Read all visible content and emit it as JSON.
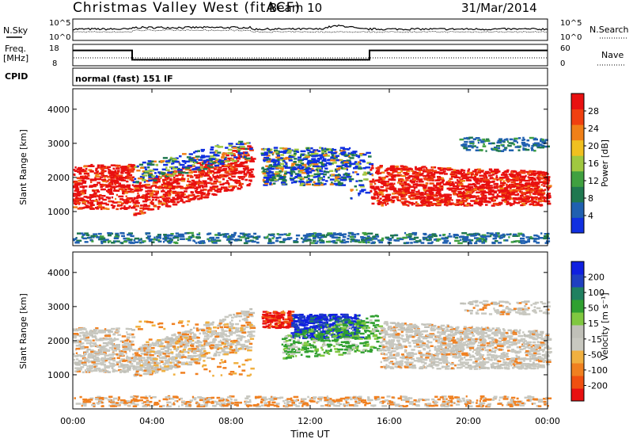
{
  "header": {
    "station": "Christmas Valley West (fitACF)",
    "beam": "Beam 10",
    "date": "31/Mar/2014"
  },
  "noise_panel": {
    "left_label": "N.Sky",
    "right_label": "N.Search",
    "left_ticks": [
      "10^5",
      "10^0"
    ],
    "right_ticks": [
      "10^5",
      "10^0"
    ]
  },
  "freq_panel": {
    "left_label_1": "Freq.",
    "left_label_2": "[MHz]",
    "right_label": "Nave",
    "left_ticks": [
      "18",
      "8"
    ],
    "right_ticks": [
      "60",
      "0"
    ],
    "cpid_label": "CPID",
    "cpid_text": "normal (fast) 151 IF"
  },
  "colors": {
    "power": [
      "#1030e0",
      "#2060b0",
      "#207850",
      "#40a040",
      "#a0c840",
      "#f0c020",
      "#f08018",
      "#f04010",
      "#e81010"
    ],
    "velocity": [
      "#e81010",
      "#f05010",
      "#f08020",
      "#f0b040",
      "#c8c8c0",
      "#c0c0b8",
      "#80c840",
      "#30a030",
      "#208060",
      "#2040c0",
      "#1020e0"
    ]
  },
  "chart_data": [
    {
      "type": "heatmap",
      "title": "Power",
      "xlabel": "",
      "ylabel": "Slant Range [km]",
      "xlim": [
        0,
        24
      ],
      "ylim": [
        0,
        4600
      ],
      "y_ticks": [
        "1000",
        "2000",
        "3000",
        "4000"
      ],
      "colorbar": {
        "label": "Power [dB]",
        "range": [
          0,
          32
        ],
        "ticks": [
          "4",
          "8",
          "12",
          "16",
          "20",
          "24",
          "28"
        ]
      },
      "echo_bands": [
        {
          "hours": [
            0,
            3
          ],
          "range_km": [
            1100,
            2400
          ],
          "level": "high"
        },
        {
          "hours": [
            3,
            9
          ],
          "range_km": [
            900,
            3000
          ],
          "level": "high-to-medium"
        },
        {
          "hours": [
            9.5,
            14
          ],
          "range_km": [
            1800,
            2900
          ],
          "level": "medium"
        },
        {
          "hours": [
            15,
            24
          ],
          "range_km": [
            1200,
            2400
          ],
          "level": "high"
        },
        {
          "hours": [
            19.5,
            24
          ],
          "range_km": [
            2800,
            3200
          ],
          "level": "low"
        }
      ]
    },
    {
      "type": "heatmap",
      "title": "Velocity",
      "xlabel": "Time UT",
      "ylabel": "Slant Range [km]",
      "xlim": [
        0,
        24
      ],
      "ylim": [
        0,
        4600
      ],
      "x_ticks": [
        "00:00",
        "04:00",
        "08:00",
        "12:00",
        "16:00",
        "20:00",
        "00:00"
      ],
      "y_ticks": [
        "1000",
        "2000",
        "3000",
        "4000"
      ],
      "colorbar": {
        "label": "Velocity [m s⁻¹]",
        "ticks": [
          "200",
          "100",
          "50",
          "15",
          "-15",
          "-50",
          "-100",
          "-200"
        ]
      },
      "echo_bands": [
        {
          "hours": [
            0,
            9
          ],
          "range_km": [
            1000,
            3000
          ],
          "velocity_class": "near zero (grey) with orange patches"
        },
        {
          "hours": [
            9.5,
            11
          ],
          "range_km": [
            2400,
            2900
          ],
          "velocity_class": "negative (red)"
        },
        {
          "hours": [
            11,
            14.5
          ],
          "range_km": [
            2100,
            2800
          ],
          "velocity_class": "positive (blue)"
        },
        {
          "hours": [
            14,
            15.5
          ],
          "range_km": [
            1500,
            2800
          ],
          "velocity_class": "positive (green)"
        },
        {
          "hours": [
            15.5,
            24
          ],
          "range_km": [
            1200,
            2600
          ],
          "velocity_class": "near zero (grey)"
        }
      ]
    },
    {
      "type": "line",
      "title": "",
      "ylabel": "Freq. [MHz]",
      "ylim": [
        8,
        18
      ],
      "series": [
        {
          "x": [
            0,
            3,
            3,
            15,
            15,
            24
          ],
          "values": [
            15.2,
            15.2,
            10.8,
            10.8,
            15.2,
            15.2
          ]
        }
      ]
    }
  ]
}
